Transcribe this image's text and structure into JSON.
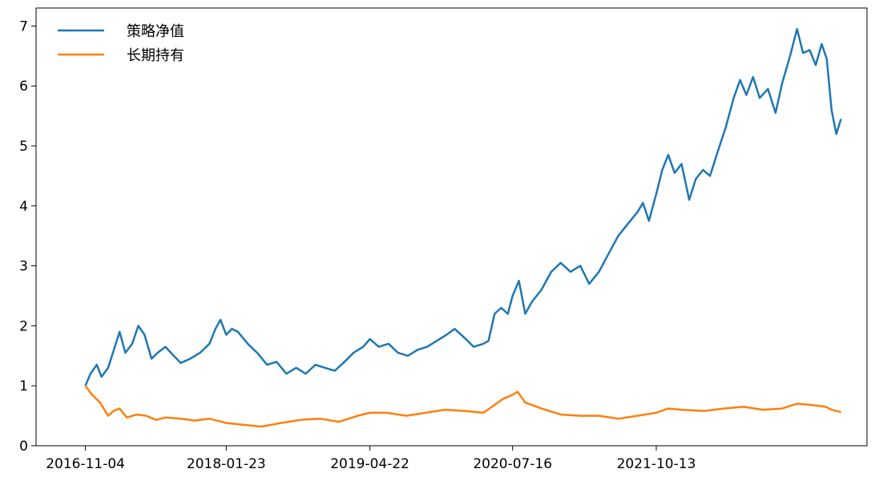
{
  "chart_data": {
    "type": "line",
    "title": "",
    "xlabel": "",
    "ylabel": "",
    "x_ticks": [
      "2016-11-04",
      "2018-01-23",
      "2019-04-22",
      "2020-07-16",
      "2021-10-13"
    ],
    "y_ticks": [
      "0",
      "1",
      "2",
      "3",
      "4",
      "5",
      "6",
      "7"
    ],
    "ylim": [
      0,
      7.3
    ],
    "xlim": [
      "2016-06-01",
      "2023-08-10"
    ],
    "grid": false,
    "legend_position": "top-left",
    "series": [
      {
        "name": "策略净值",
        "color": "#1f77b4",
        "points": [
          [
            "2016-11-04",
            1.0
          ],
          [
            "2016-11-20",
            1.2
          ],
          [
            "2016-12-10",
            1.35
          ],
          [
            "2016-12-25",
            1.15
          ],
          [
            "2017-01-15",
            1.3
          ],
          [
            "2017-02-05",
            1.65
          ],
          [
            "2017-02-20",
            1.9
          ],
          [
            "2017-03-10",
            1.55
          ],
          [
            "2017-04-01",
            1.7
          ],
          [
            "2017-04-20",
            2.0
          ],
          [
            "2017-05-10",
            1.85
          ],
          [
            "2017-06-01",
            1.45
          ],
          [
            "2017-06-20",
            1.55
          ],
          [
            "2017-07-15",
            1.65
          ],
          [
            "2017-08-10",
            1.5
          ],
          [
            "2017-09-01",
            1.38
          ],
          [
            "2017-10-01",
            1.45
          ],
          [
            "2017-11-01",
            1.55
          ],
          [
            "2017-12-01",
            1.7
          ],
          [
            "2017-12-20",
            1.95
          ],
          [
            "2018-01-05",
            2.1
          ],
          [
            "2018-01-23",
            1.85
          ],
          [
            "2018-02-10",
            1.95
          ],
          [
            "2018-03-01",
            1.9
          ],
          [
            "2018-04-01",
            1.7
          ],
          [
            "2018-05-01",
            1.55
          ],
          [
            "2018-06-01",
            1.35
          ],
          [
            "2018-07-01",
            1.4
          ],
          [
            "2018-08-01",
            1.2
          ],
          [
            "2018-09-01",
            1.3
          ],
          [
            "2018-10-01",
            1.2
          ],
          [
            "2018-11-01",
            1.35
          ],
          [
            "2018-12-01",
            1.3
          ],
          [
            "2019-01-01",
            1.25
          ],
          [
            "2019-02-01",
            1.4
          ],
          [
            "2019-03-01",
            1.55
          ],
          [
            "2019-04-01",
            1.65
          ],
          [
            "2019-04-22",
            1.78
          ],
          [
            "2019-05-20",
            1.65
          ],
          [
            "2019-06-20",
            1.7
          ],
          [
            "2019-07-20",
            1.55
          ],
          [
            "2019-08-20",
            1.5
          ],
          [
            "2019-09-20",
            1.6
          ],
          [
            "2019-10-20",
            1.65
          ],
          [
            "2019-11-20",
            1.75
          ],
          [
            "2019-12-20",
            1.85
          ],
          [
            "2020-01-15",
            1.95
          ],
          [
            "2020-02-15",
            1.8
          ],
          [
            "2020-03-15",
            1.65
          ],
          [
            "2020-04-15",
            1.7
          ],
          [
            "2020-05-01",
            1.75
          ],
          [
            "2020-05-20",
            2.2
          ],
          [
            "2020-06-10",
            2.3
          ],
          [
            "2020-07-01",
            2.2
          ],
          [
            "2020-07-16",
            2.5
          ],
          [
            "2020-08-05",
            2.75
          ],
          [
            "2020-08-25",
            2.2
          ],
          [
            "2020-09-15",
            2.4
          ],
          [
            "2020-10-15",
            2.6
          ],
          [
            "2020-11-15",
            2.9
          ],
          [
            "2020-12-15",
            3.05
          ],
          [
            "2021-01-15",
            2.9
          ],
          [
            "2021-02-15",
            3.0
          ],
          [
            "2021-03-15",
            2.7
          ],
          [
            "2021-04-15",
            2.9
          ],
          [
            "2021-05-15",
            3.2
          ],
          [
            "2021-06-15",
            3.5
          ],
          [
            "2021-07-15",
            3.7
          ],
          [
            "2021-08-15",
            3.9
          ],
          [
            "2021-09-01",
            4.05
          ],
          [
            "2021-09-20",
            3.75
          ],
          [
            "2021-10-13",
            4.2
          ],
          [
            "2021-11-01",
            4.6
          ],
          [
            "2021-11-20",
            4.85
          ],
          [
            "2021-12-10",
            4.55
          ],
          [
            "2022-01-01",
            4.7
          ],
          [
            "2022-01-25",
            4.1
          ],
          [
            "2022-02-15",
            4.45
          ],
          [
            "2022-03-10",
            4.6
          ],
          [
            "2022-04-01",
            4.5
          ],
          [
            "2022-04-25",
            4.9
          ],
          [
            "2022-05-20",
            5.3
          ],
          [
            "2022-06-15",
            5.8
          ],
          [
            "2022-07-05",
            6.1
          ],
          [
            "2022-07-25",
            5.85
          ],
          [
            "2022-08-15",
            6.15
          ],
          [
            "2022-09-05",
            5.8
          ],
          [
            "2022-10-01",
            5.95
          ],
          [
            "2022-10-25",
            5.55
          ],
          [
            "2022-11-15",
            6.05
          ],
          [
            "2022-12-10",
            6.5
          ],
          [
            "2023-01-01",
            6.95
          ],
          [
            "2023-01-20",
            6.55
          ],
          [
            "2023-02-10",
            6.6
          ],
          [
            "2023-03-01",
            6.35
          ],
          [
            "2023-03-20",
            6.7
          ],
          [
            "2023-04-05",
            6.45
          ],
          [
            "2023-04-20",
            5.6
          ],
          [
            "2023-05-05",
            5.2
          ],
          [
            "2023-05-20",
            5.45
          ]
        ]
      },
      {
        "name": "长期持有",
        "color": "#ff7f0e",
        "points": [
          [
            "2016-11-04",
            1.0
          ],
          [
            "2016-11-25",
            0.85
          ],
          [
            "2016-12-20",
            0.72
          ],
          [
            "2017-01-15",
            0.5
          ],
          [
            "2017-02-01",
            0.58
          ],
          [
            "2017-02-20",
            0.62
          ],
          [
            "2017-03-15",
            0.47
          ],
          [
            "2017-04-15",
            0.52
          ],
          [
            "2017-05-15",
            0.5
          ],
          [
            "2017-06-15",
            0.43
          ],
          [
            "2017-07-15",
            0.47
          ],
          [
            "2017-09-01",
            0.45
          ],
          [
            "2017-10-15",
            0.42
          ],
          [
            "2017-12-01",
            0.45
          ],
          [
            "2018-01-23",
            0.38
          ],
          [
            "2018-03-15",
            0.35
          ],
          [
            "2018-05-15",
            0.32
          ],
          [
            "2018-07-15",
            0.38
          ],
          [
            "2018-09-15",
            0.43
          ],
          [
            "2018-11-15",
            0.45
          ],
          [
            "2019-01-15",
            0.4
          ],
          [
            "2019-03-15",
            0.5
          ],
          [
            "2019-04-22",
            0.55
          ],
          [
            "2019-06-15",
            0.55
          ],
          [
            "2019-08-15",
            0.5
          ],
          [
            "2019-10-15",
            0.55
          ],
          [
            "2019-12-15",
            0.6
          ],
          [
            "2020-02-15",
            0.58
          ],
          [
            "2020-04-15",
            0.55
          ],
          [
            "2020-05-20",
            0.68
          ],
          [
            "2020-06-15",
            0.78
          ],
          [
            "2020-07-16",
            0.85
          ],
          [
            "2020-08-01",
            0.9
          ],
          [
            "2020-08-25",
            0.72
          ],
          [
            "2020-10-15",
            0.62
          ],
          [
            "2020-12-15",
            0.52
          ],
          [
            "2021-02-15",
            0.5
          ],
          [
            "2021-04-15",
            0.5
          ],
          [
            "2021-06-15",
            0.45
          ],
          [
            "2021-08-15",
            0.5
          ],
          [
            "2021-10-13",
            0.55
          ],
          [
            "2021-11-20",
            0.62
          ],
          [
            "2022-01-01",
            0.6
          ],
          [
            "2022-03-15",
            0.58
          ],
          [
            "2022-05-15",
            0.62
          ],
          [
            "2022-07-15",
            0.65
          ],
          [
            "2022-09-15",
            0.6
          ],
          [
            "2022-11-15",
            0.62
          ],
          [
            "2023-01-01",
            0.7
          ],
          [
            "2023-02-15",
            0.68
          ],
          [
            "2023-04-01",
            0.65
          ],
          [
            "2023-04-20",
            0.6
          ],
          [
            "2023-05-20",
            0.56
          ]
        ]
      }
    ]
  }
}
